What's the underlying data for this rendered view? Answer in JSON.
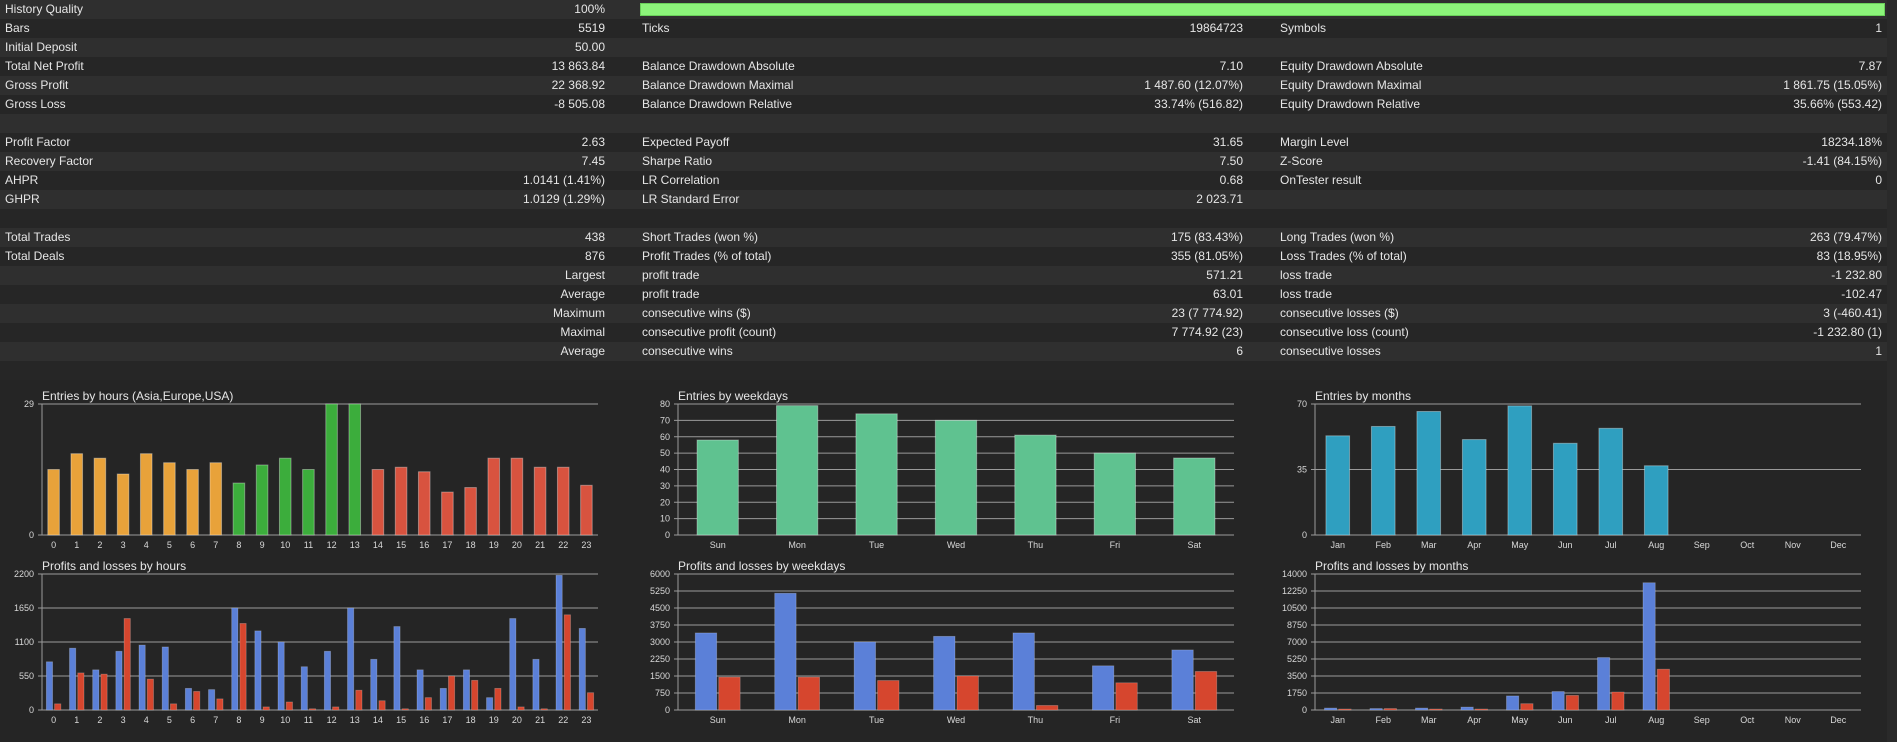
{
  "stats": {
    "rows": [
      [
        {
          "label": "History Quality",
          "value": "100%"
        },
        {
          "bar": "quality"
        },
        null
      ],
      [
        {
          "label": "Bars",
          "value": "5519"
        },
        {
          "label": "Ticks",
          "value": "19864723"
        },
        {
          "label": "Symbols",
          "value": "1"
        }
      ],
      [
        {
          "label": "Initial Deposit",
          "value": "50.00"
        },
        null,
        null
      ],
      [
        {
          "label": "Total Net Profit",
          "value": "13 863.84"
        },
        {
          "label": "Balance Drawdown Absolute",
          "value": "7.10"
        },
        {
          "label": "Equity Drawdown Absolute",
          "value": "7.87"
        }
      ],
      [
        {
          "label": "Gross Profit",
          "value": "22 368.92"
        },
        {
          "label": "Balance Drawdown Maximal",
          "value": "1 487.60 (12.07%)"
        },
        {
          "label": "Equity Drawdown Maximal",
          "value": "1 861.75 (15.05%)"
        }
      ],
      [
        {
          "label": "Gross Loss",
          "value": "-8 505.08"
        },
        {
          "label": "Balance Drawdown Relative",
          "value": "33.74% (516.82)"
        },
        {
          "label": "Equity Drawdown Relative",
          "value": "35.66% (553.42)"
        }
      ],
      [
        null,
        null,
        null
      ],
      [
        {
          "label": "Profit Factor",
          "value": "2.63"
        },
        {
          "label": "Expected Payoff",
          "value": "31.65"
        },
        {
          "label": "Margin Level",
          "value": "18234.18%"
        }
      ],
      [
        {
          "label": "Recovery Factor",
          "value": "7.45"
        },
        {
          "label": "Sharpe Ratio",
          "value": "7.50"
        },
        {
          "label": "Z-Score",
          "value": "-1.41 (84.15%)"
        }
      ],
      [
        {
          "label": "AHPR",
          "value": "1.0141 (1.41%)"
        },
        {
          "label": "LR Correlation",
          "value": "0.68"
        },
        {
          "label": "OnTester result",
          "value": "0"
        }
      ],
      [
        {
          "label": "GHPR",
          "value": "1.0129 (1.29%)"
        },
        {
          "label": "LR Standard Error",
          "value": "2 023.71"
        },
        null
      ],
      [
        null,
        null,
        null
      ],
      [
        {
          "label": "Total Trades",
          "value": "438"
        },
        {
          "label": "Short Trades (won %)",
          "value": "175 (83.43%)"
        },
        {
          "label": "Long Trades (won %)",
          "value": "263 (79.47%)"
        }
      ],
      [
        {
          "label": "Total Deals",
          "value": "876"
        },
        {
          "label": "Profit Trades (% of total)",
          "value": "355 (81.05%)"
        },
        {
          "label": "Loss Trades (% of total)",
          "value": "83 (18.95%)"
        }
      ],
      [
        {
          "label": "",
          "value": "Largest"
        },
        {
          "label": "profit trade",
          "value": "571.21"
        },
        {
          "label": "loss trade",
          "value": "-1 232.80"
        }
      ],
      [
        {
          "label": "",
          "value": "Average"
        },
        {
          "label": "profit trade",
          "value": "63.01"
        },
        {
          "label": "loss trade",
          "value": "-102.47"
        }
      ],
      [
        {
          "label": "",
          "value": "Maximum"
        },
        {
          "label": "consecutive wins ($)",
          "value": "23 (7 774.92)"
        },
        {
          "label": "consecutive losses ($)",
          "value": "3 (-460.41)"
        }
      ],
      [
        {
          "label": "",
          "value": "Maximal"
        },
        {
          "label": "consecutive profit (count)",
          "value": "7 774.92 (23)"
        },
        {
          "label": "consecutive loss (count)",
          "value": "-1 232.80 (1)"
        }
      ],
      [
        {
          "label": "",
          "value": "Average"
        },
        {
          "label": "consecutive wins",
          "value": "6"
        },
        {
          "label": "consecutive losses",
          "value": "1"
        }
      ],
      [
        null,
        null,
        null
      ]
    ],
    "quality_pct": 100
  },
  "colors": {
    "quality_bar": "#8cf57a",
    "orange": "#e8a23a",
    "green": "#3cad3c",
    "red": "#d8533f",
    "teal_green": "#5fc290",
    "blue_teal": "#2f9fc0",
    "profit_blue": "#5b80d8",
    "loss_red": "#d6462e"
  },
  "chart_data": [
    {
      "type": "bar",
      "title": "Entries by hours (Asia,Europe,USA)",
      "categories": [
        "0",
        "1",
        "2",
        "3",
        "4",
        "5",
        "6",
        "7",
        "8",
        "9",
        "10",
        "11",
        "12",
        "13",
        "14",
        "15",
        "16",
        "17",
        "18",
        "19",
        "20",
        "21",
        "22",
        "23"
      ],
      "values": [
        14.5,
        18,
        17,
        13.5,
        18,
        16,
        14.5,
        16,
        11.5,
        15.5,
        17,
        14.5,
        29,
        29,
        14.5,
        15,
        14,
        9.5,
        10.5,
        17,
        17,
        15,
        15,
        11
      ],
      "ylim": [
        0,
        29
      ],
      "yticks": [
        "0",
        "29"
      ],
      "grid": true
    },
    {
      "type": "bar",
      "title": "Entries by weekdays",
      "categories": [
        "Sun",
        "Mon",
        "Tue",
        "Wed",
        "Thu",
        "Fri",
        "Sat"
      ],
      "values": [
        58,
        79,
        74,
        70,
        61,
        50,
        47
      ],
      "ylim": [
        0,
        80
      ],
      "yticks": [
        "0",
        "10",
        "20",
        "30",
        "40",
        "50",
        "60",
        "70",
        "80"
      ],
      "grid": true
    },
    {
      "type": "bar",
      "title": "Entries by months",
      "categories": [
        "Jan",
        "Feb",
        "Mar",
        "Apr",
        "May",
        "Jun",
        "Jul",
        "Aug",
        "Sep",
        "Oct",
        "Nov",
        "Dec"
      ],
      "values": [
        53,
        58,
        66,
        51,
        69,
        49,
        57,
        37,
        0,
        0,
        0,
        0
      ],
      "ylim": [
        0,
        70
      ],
      "yticks": [
        "0",
        "35",
        "70"
      ],
      "grid": true
    },
    {
      "type": "bar",
      "title": "Profits and losses by hours",
      "categories": [
        "0",
        "1",
        "2",
        "3",
        "4",
        "5",
        "6",
        "7",
        "8",
        "9",
        "10",
        "11",
        "12",
        "13",
        "14",
        "15",
        "16",
        "17",
        "18",
        "19",
        "20",
        "21",
        "22",
        "23"
      ],
      "series": [
        {
          "values": [
            780,
            1000,
            650,
            950,
            1050,
            1020,
            350,
            330,
            1650,
            1280,
            1100,
            700,
            950,
            1650,
            820,
            1350,
            650,
            350,
            650,
            200,
            1480,
            820,
            2180,
            1320
          ]
        },
        {
          "values": [
            100,
            600,
            580,
            1480,
            500,
            100,
            300,
            180,
            1400,
            50,
            130,
            20,
            50,
            320,
            150,
            20,
            200,
            550,
            480,
            350,
            50,
            20,
            1540,
            280
          ]
        }
      ],
      "ylim": [
        0,
        2200
      ],
      "yticks": [
        "0",
        "550",
        "1100",
        "1650",
        "2200"
      ],
      "grid": true
    },
    {
      "type": "bar",
      "title": "Profits and losses by weekdays",
      "categories": [
        "Sun",
        "Mon",
        "Tue",
        "Wed",
        "Thu",
        "Fri",
        "Sat"
      ],
      "series": [
        {
          "values": [
            3400,
            5150,
            3000,
            3250,
            3400,
            1950,
            2650
          ]
        },
        {
          "values": [
            1450,
            1450,
            1300,
            1500,
            200,
            1200,
            1700
          ]
        }
      ],
      "ylim": [
        0,
        6000
      ],
      "yticks": [
        "0",
        "750",
        "1500",
        "2250",
        "3000",
        "3750",
        "4500",
        "5250",
        "6000"
      ],
      "grid": true
    },
    {
      "type": "bar",
      "title": "Profits and losses by months",
      "categories": [
        "Jan",
        "Feb",
        "Mar",
        "Apr",
        "May",
        "Jun",
        "Jul",
        "Aug",
        "Sep",
        "Oct",
        "Nov",
        "Dec"
      ],
      "series": [
        {
          "values": [
            200,
            150,
            200,
            300,
            1450,
            1900,
            5400,
            13100,
            0,
            0,
            0,
            0
          ]
        },
        {
          "values": [
            100,
            150,
            100,
            100,
            650,
            1500,
            1850,
            4200,
            0,
            0,
            0,
            0
          ]
        }
      ],
      "ylim": [
        0,
        14000
      ],
      "yticks": [
        "0",
        "1750",
        "3500",
        "5250",
        "7000",
        "8750",
        "10500",
        "12250",
        "14000"
      ],
      "grid": true
    }
  ]
}
